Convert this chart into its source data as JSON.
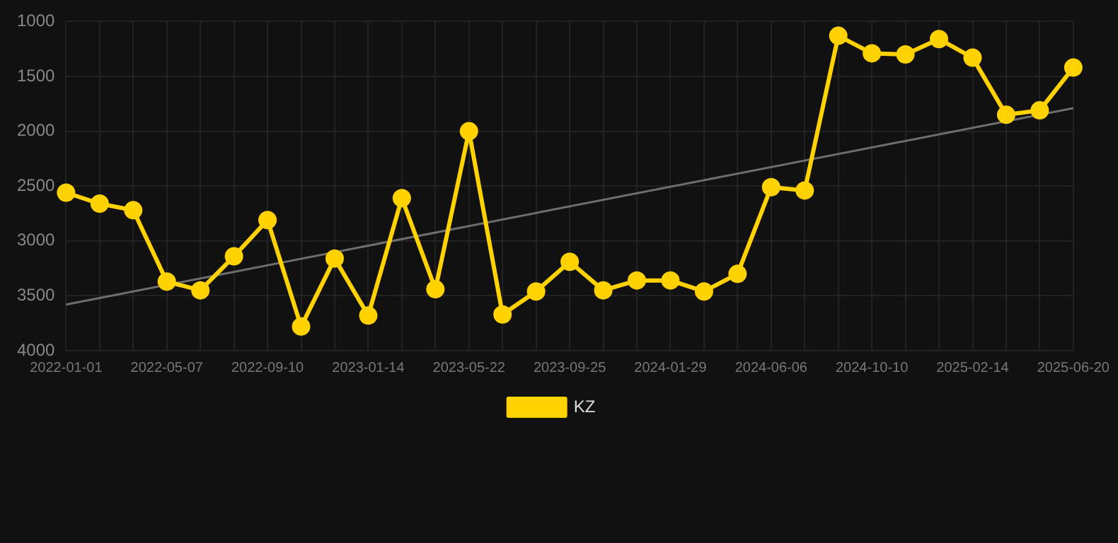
{
  "chart_data": {
    "type": "line",
    "categories": [
      "2022-01-01",
      null,
      null,
      "2022-05-07",
      null,
      null,
      "2022-09-10",
      null,
      null,
      "2023-01-14",
      null,
      null,
      "2023-05-22",
      null,
      null,
      "2023-09-25",
      null,
      null,
      "2024-01-29",
      null,
      null,
      "2024-06-06",
      null,
      null,
      "2024-10-10",
      null,
      null,
      "2025-02-14",
      null,
      null,
      "2025-06-20"
    ],
    "series": [
      {
        "name": "KZ",
        "color": "#ffd200",
        "marker": "circle",
        "values": [
          2560,
          2660,
          2720,
          3370,
          3450,
          3140,
          2810,
          3780,
          3160,
          3680,
          2610,
          3440,
          2000,
          3670,
          3460,
          3190,
          3450,
          3360,
          3360,
          3460,
          3300,
          2510,
          2540,
          1130,
          1290,
          1300,
          1160,
          1330,
          1850,
          1810,
          1420
        ]
      },
      {
        "type": "line",
        "color": "#6e6e6e",
        "marker": "none",
        "values": [
          3580,
          null,
          null,
          null,
          null,
          null,
          null,
          null,
          null,
          null,
          null,
          null,
          null,
          null,
          null,
          null,
          null,
          null,
          null,
          null,
          null,
          null,
          null,
          null,
          null,
          null,
          null,
          null,
          null,
          null,
          1790
        ]
      }
    ],
    "ylim": [
      4000,
      1000
    ],
    "yticks": [
      1000,
      1500,
      2000,
      2500,
      3000,
      3500,
      4000
    ],
    "grid": true,
    "legend": "bottom",
    "line_style": "solid"
  }
}
